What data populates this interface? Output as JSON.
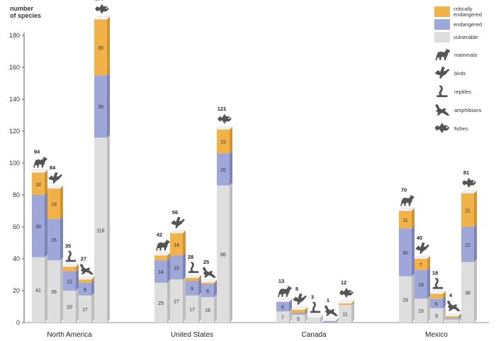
{
  "chart_data": {
    "type": "bar",
    "stacked": true,
    "ylabel": "number of species",
    "ylim": [
      0,
      180
    ],
    "yticks": [
      0,
      20,
      40,
      60,
      80,
      100,
      120,
      140,
      160,
      180
    ],
    "grid": false,
    "legend_position": "top-right",
    "status_legend": [
      {
        "key": "critically",
        "label": "critically endangered",
        "color": "#f2b24a"
      },
      {
        "key": "endangered",
        "label": "endangered",
        "color": "#9ea7d8"
      },
      {
        "key": "vulnerable",
        "label": "vulnerable",
        "color": "#dedede"
      }
    ],
    "group_legend": [
      {
        "key": "mammals",
        "label": "mammals",
        "icon": "wolf-icon"
      },
      {
        "key": "birds",
        "label": "birds",
        "icon": "bird-icon"
      },
      {
        "key": "reptiles",
        "label": "reptiles",
        "icon": "snake-icon"
      },
      {
        "key": "amphibians",
        "label": "amphibians",
        "icon": "frog-icon"
      },
      {
        "key": "fishes",
        "label": "fishes",
        "icon": "fish-icon"
      }
    ],
    "regions": [
      {
        "name": "North America",
        "bars": [
          {
            "group": "mammals",
            "total": 94,
            "vulnerable": 41,
            "endangered": 39,
            "critically": 14
          },
          {
            "group": "birds",
            "total": 84,
            "vulnerable": 39,
            "endangered": 26,
            "critically": 19
          },
          {
            "group": "reptiles",
            "total": 35,
            "vulnerable": 20,
            "endangered": 12,
            "critically": 3
          },
          {
            "group": "amphibians",
            "total": 27,
            "vulnerable": 17,
            "endangered": 8,
            "critically": 2
          },
          {
            "group": "fishes",
            "total": 190,
            "vulnerable": 116,
            "endangered": 39,
            "critically": 35
          }
        ]
      },
      {
        "name": "United States",
        "bars": [
          {
            "group": "mammals",
            "total": 42,
            "vulnerable": 25,
            "endangered": 14,
            "critically": 3
          },
          {
            "group": "birds",
            "total": 56,
            "vulnerable": 27,
            "endangered": 15,
            "critically": 14
          },
          {
            "group": "reptiles",
            "total": 28,
            "vulnerable": 17,
            "endangered": 9,
            "critically": 2
          },
          {
            "group": "amphibians",
            "total": 25,
            "vulnerable": 16,
            "endangered": 8,
            "critically": 1
          },
          {
            "group": "fishes",
            "total": 121,
            "vulnerable": 86,
            "endangered": 20,
            "critically": 15
          }
        ]
      },
      {
        "name": "Canada",
        "bars": [
          {
            "group": "mammals",
            "total": 13,
            "vulnerable": 7,
            "endangered": 6,
            "critically": 0
          },
          {
            "group": "birds",
            "total": 8,
            "vulnerable": 5,
            "endangered": 1,
            "critically": 2
          },
          {
            "group": "reptiles",
            "total": 3,
            "vulnerable": 3,
            "endangered": 0,
            "critically": 0
          },
          {
            "group": "amphibians",
            "total": 1,
            "vulnerable": 0,
            "endangered": 1,
            "critically": 0
          },
          {
            "group": "fishes",
            "total": 12,
            "vulnerable": 11,
            "endangered": 0,
            "critically": 1
          }
        ]
      },
      {
        "name": "Mexico",
        "bars": [
          {
            "group": "mammals",
            "total": 70,
            "vulnerable": 29,
            "endangered": 30,
            "critically": 11
          },
          {
            "group": "birds",
            "total": 40,
            "vulnerable": 15,
            "endangered": 18,
            "critically": 7
          },
          {
            "group": "reptiles",
            "total": 18,
            "vulnerable": 9,
            "endangered": 6,
            "critically": 3
          },
          {
            "group": "amphibians",
            "total": 4,
            "vulnerable": 2,
            "endangered": 1,
            "critically": 1
          },
          {
            "group": "fishes",
            "total": 81,
            "vulnerable": 38,
            "endangered": 22,
            "critically": 21
          }
        ]
      }
    ]
  }
}
